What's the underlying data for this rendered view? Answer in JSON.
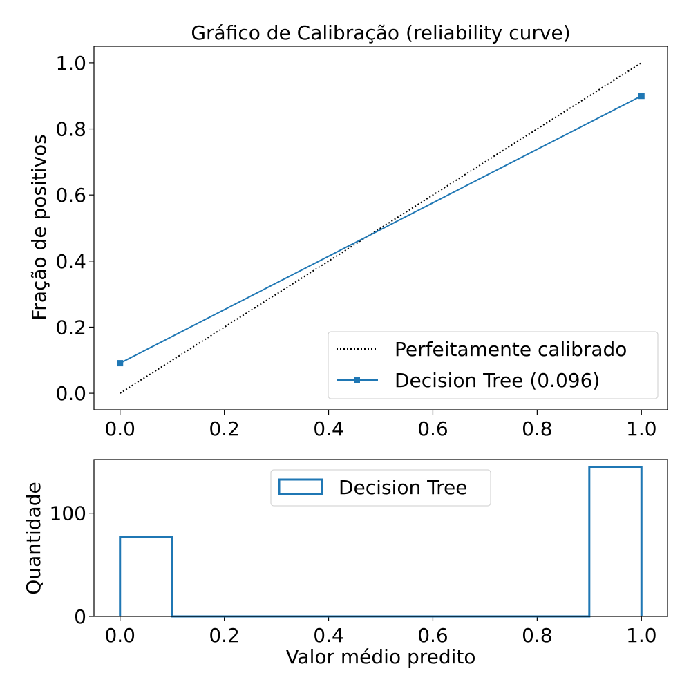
{
  "chart_data": [
    {
      "type": "line",
      "title": "Gráfico de Calibração  (reliability curve)",
      "xlabel": "",
      "ylabel": "Fração de positivos",
      "xlim": [
        -0.05,
        1.05
      ],
      "ylim": [
        -0.05,
        1.05
      ],
      "xticks": [
        0.0,
        0.2,
        0.4,
        0.6,
        0.8,
        1.0
      ],
      "xtick_labels": [
        "0.0",
        "0.2",
        "0.4",
        "0.6",
        "0.8",
        "1.0"
      ],
      "yticks": [
        0.0,
        0.2,
        0.4,
        0.6,
        0.8,
        1.0
      ],
      "ytick_labels": [
        "0.0",
        "0.2",
        "0.4",
        "0.6",
        "0.8",
        "1.0"
      ],
      "grid": false,
      "legend_position": "bottom-right",
      "series": [
        {
          "name": "Perfeitamente calibrado",
          "style": "dotted",
          "color": "#000000",
          "marker": "none",
          "x": [
            0.0,
            1.0
          ],
          "y": [
            0.0,
            1.0
          ]
        },
        {
          "name": "Decision Tree (0.096)",
          "style": "solid",
          "color": "#1f77b4",
          "marker": "square",
          "x": [
            0.0,
            1.0
          ],
          "y": [
            0.091,
            0.9
          ]
        }
      ]
    },
    {
      "type": "bar",
      "title": "",
      "xlabel": "Valor médio predito",
      "ylabel": "Quantidade",
      "xlim": [
        -0.05,
        1.05
      ],
      "ylim": [
        0,
        152
      ],
      "xticks": [
        0.0,
        0.2,
        0.4,
        0.6,
        0.8,
        1.0
      ],
      "xtick_labels": [
        "0.0",
        "0.2",
        "0.4",
        "0.6",
        "0.8",
        "1.0"
      ],
      "yticks": [
        0,
        100
      ],
      "ytick_labels": [
        "0",
        "100"
      ],
      "grid": false,
      "legend_position": "top-center",
      "histtype": "step",
      "series": [
        {
          "name": "Decision Tree",
          "color": "#1f77b4",
          "bin_edges": [
            0.0,
            0.1,
            0.2,
            0.3,
            0.4,
            0.5,
            0.6,
            0.7,
            0.8,
            0.9,
            1.0
          ],
          "counts": [
            77,
            0,
            0,
            0,
            0,
            0,
            0,
            0,
            0,
            145
          ]
        }
      ]
    }
  ]
}
